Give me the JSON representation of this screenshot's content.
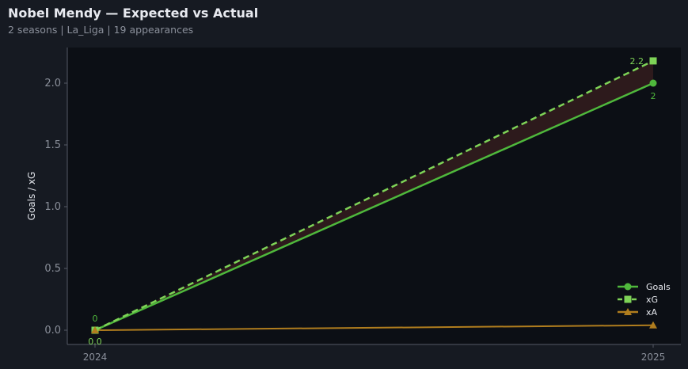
{
  "header": {
    "title": "Nobel Mendy — Expected vs Actual",
    "subtitle": "2 seasons | La_Liga | 19 appearances"
  },
  "chart_data": {
    "type": "line",
    "title": "Nobel Mendy — Expected vs Actual",
    "xlabel": "",
    "ylabel": "Goals / xG",
    "x": [
      2024,
      2025
    ],
    "x_tick_labels": [
      "2024",
      "2025"
    ],
    "ylim": [
      -0.1,
      2.35
    ],
    "y_ticks": [
      0.0,
      0.5,
      1.0,
      1.5,
      2.0
    ],
    "y_tick_labels": [
      "0.0",
      "0.5",
      "1.0",
      "1.5",
      "2.0"
    ],
    "grid": false,
    "legend": "bottom-right",
    "series": [
      {
        "name": "Goals",
        "values": [
          0,
          2
        ],
        "color": "#4fb83c",
        "style": "solid",
        "marker": "circle",
        "labels": [
          "0",
          "2"
        ]
      },
      {
        "name": "xG",
        "values": [
          0,
          2.18
        ],
        "color": "#7ed357",
        "style": "dashed",
        "marker": "square",
        "labels": [
          "0.0",
          "2.2"
        ]
      },
      {
        "name": "xA",
        "values": [
          0,
          0.04
        ],
        "color": "#b07d1e",
        "style": "solid",
        "marker": "triangle"
      }
    ],
    "fill_between": {
      "series": [
        "Goals",
        "xG"
      ],
      "color": "#2d1a1c"
    }
  },
  "colors": {
    "background": "#161a22",
    "plot_background": "#0c0f15",
    "axis": "#555a66",
    "tick_text": "#8a8f9a"
  }
}
